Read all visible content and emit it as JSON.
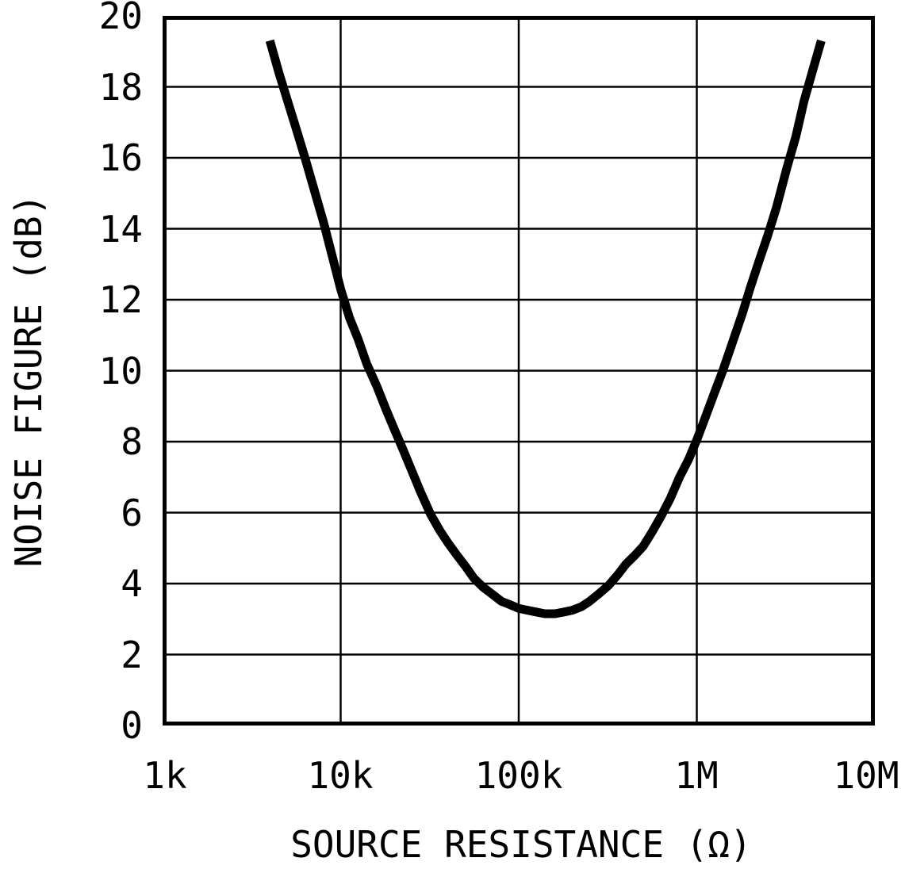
{
  "chart_data": {
    "type": "line",
    "title": "",
    "xlabel": "SOURCE RESISTANCE (Ω)",
    "ylabel": "NOISE FIGURE (dB)",
    "x_scale": "log",
    "x_range_ohms": [
      1000,
      10000000
    ],
    "ylim": [
      0,
      20
    ],
    "y_tick_step": 2,
    "grid": "on",
    "legend": "none",
    "line_color": "#000000",
    "background_color": "#ffffff",
    "x_tick_labels": [
      "1k",
      "10k",
      "100k",
      "1M",
      "10M"
    ],
    "y_tick_labels": [
      "20",
      "18",
      "16",
      "14",
      "12",
      "10",
      "8",
      "6",
      "4",
      "2",
      "0"
    ],
    "series": [
      {
        "name": "noise figure",
        "points_ohms_db": [
          [
            4000,
            19.3
          ],
          [
            4500,
            18.4
          ],
          [
            5000,
            17.65
          ],
          [
            5600,
            16.85
          ],
          [
            6300,
            16.0
          ],
          [
            7100,
            15.1
          ],
          [
            8000,
            14.2
          ],
          [
            9000,
            13.2
          ],
          [
            10000,
            12.3
          ],
          [
            11200,
            11.5
          ],
          [
            12500,
            10.9
          ],
          [
            14000,
            10.2
          ],
          [
            16000,
            9.55
          ],
          [
            18000,
            8.9
          ],
          [
            20000,
            8.35
          ],
          [
            22500,
            7.75
          ],
          [
            25000,
            7.2
          ],
          [
            28000,
            6.6
          ],
          [
            32000,
            5.95
          ],
          [
            36000,
            5.5
          ],
          [
            40000,
            5.15
          ],
          [
            45000,
            4.8
          ],
          [
            50000,
            4.5
          ],
          [
            56000,
            4.15
          ],
          [
            63000,
            3.9
          ],
          [
            71000,
            3.7
          ],
          [
            80000,
            3.5
          ],
          [
            90000,
            3.4
          ],
          [
            100000,
            3.3
          ],
          [
            112000,
            3.25
          ],
          [
            125000,
            3.2
          ],
          [
            140000,
            3.15
          ],
          [
            160000,
            3.15
          ],
          [
            180000,
            3.2
          ],
          [
            200000,
            3.25
          ],
          [
            225000,
            3.35
          ],
          [
            250000,
            3.5
          ],
          [
            280000,
            3.7
          ],
          [
            320000,
            3.95
          ],
          [
            360000,
            4.25
          ],
          [
            400000,
            4.55
          ],
          [
            450000,
            4.8
          ],
          [
            500000,
            5.05
          ],
          [
            560000,
            5.45
          ],
          [
            630000,
            5.9
          ],
          [
            710000,
            6.4
          ],
          [
            800000,
            7.0
          ],
          [
            900000,
            7.5
          ],
          [
            1000000,
            8.05
          ],
          [
            1120000,
            8.7
          ],
          [
            1250000,
            9.35
          ],
          [
            1400000,
            10.0
          ],
          [
            1600000,
            10.85
          ],
          [
            1800000,
            11.6
          ],
          [
            2000000,
            12.35
          ],
          [
            2240000,
            13.1
          ],
          [
            2500000,
            13.8
          ],
          [
            2800000,
            14.6
          ],
          [
            3200000,
            15.7
          ],
          [
            3600000,
            16.6
          ],
          [
            4000000,
            17.6
          ],
          [
            4500000,
            18.5
          ],
          [
            5000000,
            19.3
          ]
        ],
        "minimum": {
          "resistance_ohms": 150000,
          "noise_figure_db": 3.2
        }
      }
    ]
  }
}
